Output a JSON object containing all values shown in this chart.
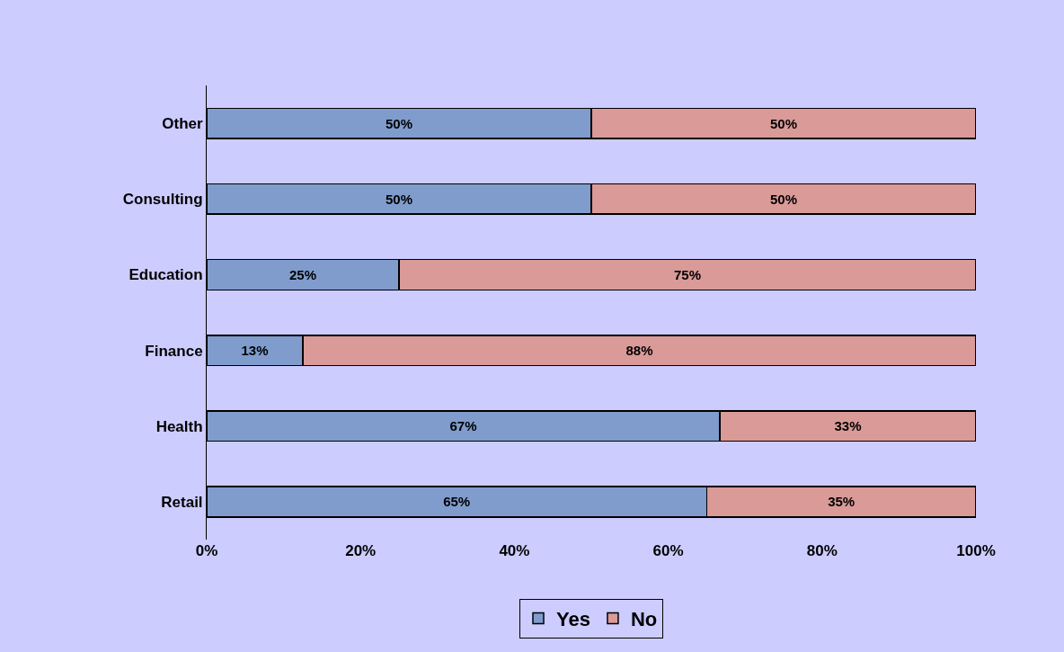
{
  "chart_data": {
    "type": "bar",
    "orientation": "horizontal",
    "stacked": true,
    "categories": [
      "Other",
      "Consulting",
      "Education",
      "Finance",
      "Health",
      "Retail"
    ],
    "series": [
      {
        "name": "Yes",
        "color": "#7f9ccc",
        "values": [
          50,
          50,
          25,
          12.5,
          66.7,
          65
        ],
        "value_labels": [
          "50%",
          "50%",
          "25%",
          "13%",
          "67%",
          "65%"
        ]
      },
      {
        "name": "No",
        "color": "#d99a98",
        "values": [
          50,
          50,
          75,
          87.5,
          33.3,
          35
        ],
        "value_labels": [
          "50%",
          "50%",
          "75%",
          "88%",
          "33%",
          "35%"
        ]
      }
    ],
    "xlim": [
      0,
      100
    ],
    "xticks": [
      {
        "value": 0,
        "label": "0%"
      },
      {
        "value": 20,
        "label": "20%"
      },
      {
        "value": 40,
        "label": "40%"
      },
      {
        "value": 60,
        "label": "60%"
      },
      {
        "value": 80,
        "label": "80%"
      },
      {
        "value": 100,
        "label": "100%"
      }
    ],
    "grid": false,
    "legend": "bottom"
  }
}
